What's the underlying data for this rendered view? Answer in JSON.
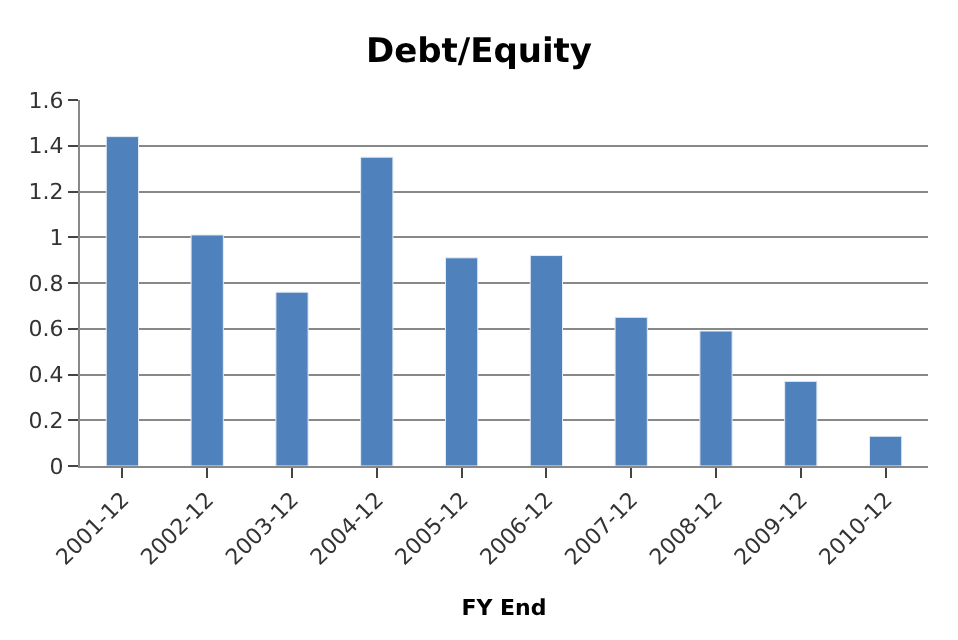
{
  "chart_data": {
    "type": "bar",
    "title": "Debt/Equity",
    "xlabel": "FY End",
    "categories": [
      "2001-12",
      "2002-12",
      "2003-12",
      "2004-12",
      "2005-12",
      "2006-12",
      "2007-12",
      "2008-12",
      "2009-12",
      "2010-12"
    ],
    "values": [
      1.44,
      1.01,
      0.76,
      1.35,
      0.91,
      0.92,
      0.65,
      0.59,
      0.37,
      0.13
    ],
    "color": "#4f81bd",
    "ylim": [
      0,
      1.6
    ],
    "yticks": [
      0,
      0.2,
      0.4,
      0.6,
      0.8,
      1,
      1.2,
      1.4,
      1.6
    ],
    "grid": "y"
  }
}
